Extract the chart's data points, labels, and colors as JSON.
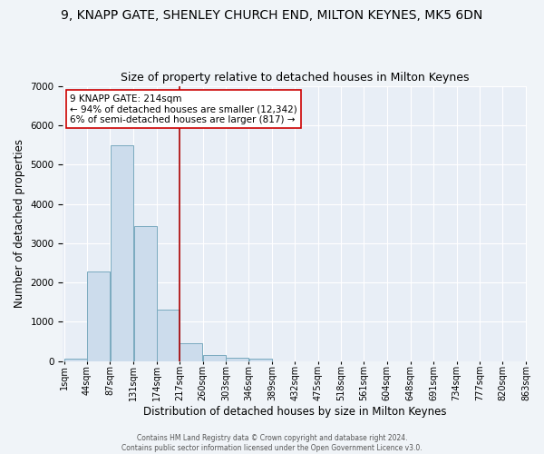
{
  "title": "9, KNAPP GATE, SHENLEY CHURCH END, MILTON KEYNES, MK5 6DN",
  "subtitle": "Size of property relative to detached houses in Milton Keynes",
  "xlabel": "Distribution of detached houses by size in Milton Keynes",
  "ylabel": "Number of detached properties",
  "bar_values": [
    75,
    2280,
    5500,
    3430,
    1310,
    450,
    160,
    85,
    65,
    0,
    0,
    0,
    0,
    0,
    0,
    0,
    0,
    0,
    0,
    0
  ],
  "bin_edges": [
    1,
    44,
    87,
    131,
    174,
    217,
    260,
    303,
    346,
    389,
    432,
    475,
    518,
    561,
    604,
    648,
    691,
    734,
    777,
    820,
    863
  ],
  "bin_labels": [
    "1sqm",
    "44sqm",
    "87sqm",
    "131sqm",
    "174sqm",
    "217sqm",
    "260sqm",
    "303sqm",
    "346sqm",
    "389sqm",
    "432sqm",
    "475sqm",
    "518sqm",
    "561sqm",
    "604sqm",
    "648sqm",
    "691sqm",
    "734sqm",
    "777sqm",
    "820sqm",
    "863sqm"
  ],
  "vline_x": 217,
  "ylim": [
    0,
    7000
  ],
  "bar_facecolor": "#ccdcec",
  "bar_edgecolor": "#7aaabf",
  "vline_color": "#aa0000",
  "annotation_line1": "9 KNAPP GATE: 214sqm",
  "annotation_line2": "← 94% of detached houses are smaller (12,342)",
  "annotation_line3": "6% of semi-detached houses are larger (817) →",
  "annotation_box_edgecolor": "#cc0000",
  "background_color": "#e8eef6",
  "figure_bg": "#f0f4f8",
  "grid_color": "#ffffff",
  "title_fontsize": 10,
  "subtitle_fontsize": 9,
  "xlabel_fontsize": 8.5,
  "ylabel_fontsize": 8.5,
  "tick_fontsize": 7,
  "annotation_fontsize": 7.5,
  "footer_fontsize": 5.5,
  "footer_text": "Contains HM Land Registry data © Crown copyright and database right 2024.\nContains public sector information licensed under the Open Government Licence v3.0."
}
